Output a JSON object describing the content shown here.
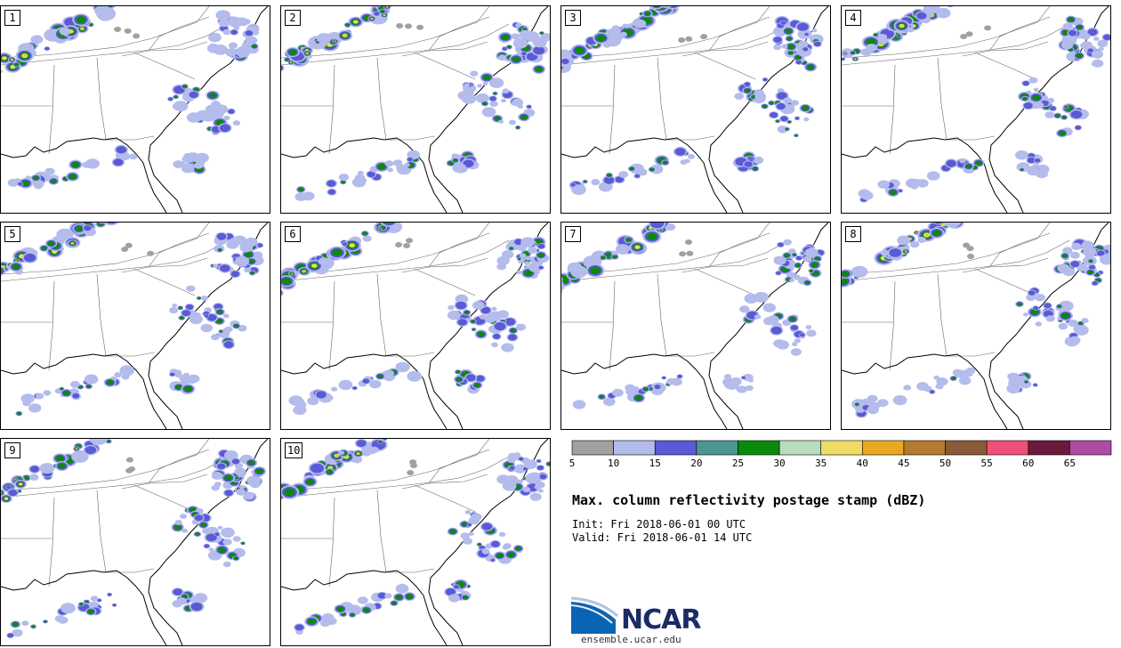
{
  "title": "Max. column reflectivity postage stamp (dBZ)",
  "init": {
    "label": "Init:",
    "value": "Fri 2018-06-01 00 UTC"
  },
  "valid": {
    "label": "Valid:",
    "value": "Fri 2018-06-01 14 UTC"
  },
  "members": [
    "1",
    "2",
    "3",
    "4",
    "5",
    "6",
    "7",
    "8",
    "9",
    "10"
  ],
  "colorbar": {
    "ticks": [
      "5",
      "10",
      "15",
      "20",
      "25",
      "30",
      "35",
      "40",
      "45",
      "50",
      "55",
      "60",
      "65"
    ],
    "colors": [
      "#a0a0a0",
      "#b4bcec",
      "#5a5ad6",
      "#4a9690",
      "#0a8a0a",
      "#b8dcbc",
      "#eedc64",
      "#eaa820",
      "#b47a30",
      "#8a5a3a",
      "#ee5078",
      "#6c1a3c",
      "#ac4ca4"
    ]
  },
  "colors": {
    "outline": "#000000",
    "state_lines": "#666666",
    "ncar_blue": "#0a64b4",
    "ncar_text": "#1a2b66"
  },
  "logo": {
    "text": "NCAR"
  },
  "url": "ensemble.ucar.edu"
}
